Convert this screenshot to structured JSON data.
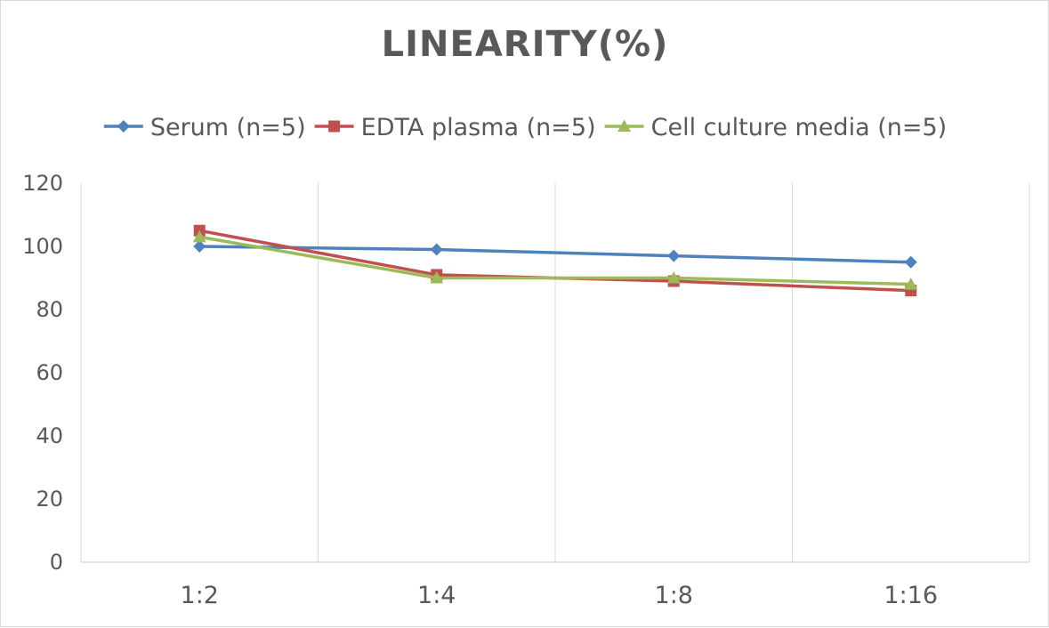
{
  "chart_data": {
    "type": "line",
    "title": "LINEARITY(%)",
    "xlabel": "",
    "ylabel": "",
    "categories": [
      "1:2",
      "1:4",
      "1:8",
      "1:16"
    ],
    "ylim": [
      0,
      120
    ],
    "yticks": [
      0,
      20,
      40,
      60,
      80,
      100,
      120
    ],
    "grid": "vertical",
    "legend_position": "top",
    "series": [
      {
        "name": "Serum (n=5)",
        "values": [
          100,
          99,
          97,
          95
        ],
        "color": "#4f81bd",
        "marker": "diamond"
      },
      {
        "name": "EDTA plasma (n=5)",
        "values": [
          105,
          91,
          89,
          86
        ],
        "color": "#c0504d",
        "marker": "square"
      },
      {
        "name": "Cell culture media (n=5)",
        "values": [
          103,
          90,
          90,
          88
        ],
        "color": "#9bbb59",
        "marker": "triangle"
      }
    ]
  }
}
